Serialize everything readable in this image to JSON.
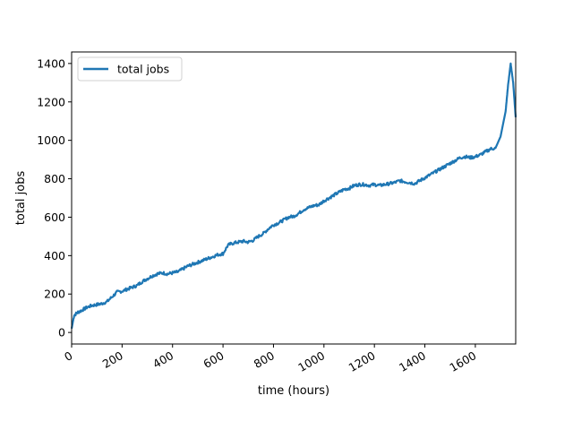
{
  "chart_data": {
    "type": "line",
    "title": "",
    "xlabel": "time (hours)",
    "ylabel": "total jobs",
    "xlim": [
      0,
      1760
    ],
    "ylim": [
      -60,
      1460
    ],
    "xticks": [
      0,
      200,
      400,
      600,
      800,
      1000,
      1200,
      1400,
      1600
    ],
    "xtick_labels": [
      "0",
      "200",
      "400",
      "600",
      "800",
      "1000",
      "1200",
      "1400",
      "1600"
    ],
    "yticks": [
      0,
      200,
      400,
      600,
      800,
      1000,
      1200,
      1400
    ],
    "ytick_labels": [
      "0",
      "200",
      "400",
      "600",
      "800",
      "1000",
      "1200",
      "1400"
    ],
    "grid": false,
    "legend": {
      "position": "upper-left",
      "entries": [
        "total jobs"
      ]
    },
    "series": [
      {
        "name": "total jobs",
        "color": "#1f77b4",
        "x": [
          0,
          10,
          25,
          40,
          60,
          80,
          100,
          120,
          140,
          160,
          180,
          200,
          220,
          240,
          260,
          280,
          300,
          320,
          340,
          360,
          380,
          400,
          420,
          440,
          460,
          480,
          500,
          520,
          540,
          560,
          580,
          600,
          620,
          640,
          660,
          680,
          700,
          720,
          740,
          760,
          780,
          800,
          820,
          840,
          860,
          880,
          900,
          920,
          940,
          960,
          980,
          1000,
          1020,
          1040,
          1060,
          1080,
          1100,
          1120,
          1140,
          1160,
          1180,
          1200,
          1220,
          1240,
          1260,
          1280,
          1300,
          1320,
          1340,
          1360,
          1380,
          1400,
          1420,
          1440,
          1460,
          1480,
          1500,
          1520,
          1540,
          1560,
          1580,
          1600,
          1620,
          1640,
          1660,
          1680,
          1700,
          1720,
          1730,
          1740,
          1750,
          1760
        ],
        "y": [
          20,
          90,
          105,
          115,
          130,
          140,
          145,
          150,
          160,
          185,
          210,
          215,
          225,
          235,
          245,
          265,
          280,
          295,
          305,
          310,
          305,
          310,
          315,
          330,
          345,
          355,
          365,
          375,
          385,
          395,
          405,
          410,
          455,
          465,
          470,
          475,
          470,
          480,
          500,
          515,
          540,
          560,
          570,
          585,
          600,
          605,
          620,
          640,
          650,
          660,
          665,
          685,
          700,
          715,
          730,
          745,
          750,
          765,
          770,
          770,
          765,
          770,
          765,
          770,
          775,
          780,
          790,
          785,
          780,
          775,
          790,
          805,
          820,
          835,
          850,
          865,
          880,
          895,
          910,
          915,
          910,
          915,
          925,
          940,
          955,
          960,
          1020,
          1150,
          1290,
          1400,
          1300,
          1120
        ]
      }
    ]
  }
}
